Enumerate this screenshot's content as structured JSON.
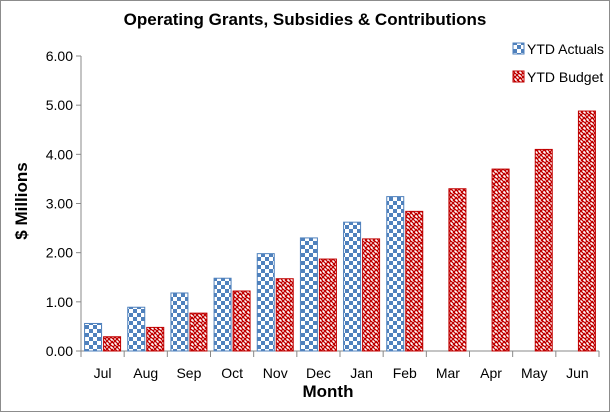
{
  "chart_data": {
    "type": "bar",
    "title": "Operating Grants, Subsidies & Contributions",
    "xlabel": "Month",
    "ylabel": "$ Millions",
    "categories": [
      "Jul",
      "Aug",
      "Sep",
      "Oct",
      "Nov",
      "Dec",
      "Jan",
      "Feb",
      "Mar",
      "Apr",
      "May",
      "Jun"
    ],
    "series": [
      {
        "name": "YTD Actuals",
        "color": "#4f81bd",
        "pattern": "checker",
        "values": [
          0.56,
          0.89,
          1.18,
          1.48,
          1.98,
          2.3,
          2.62,
          3.14,
          null,
          null,
          null,
          null
        ]
      },
      {
        "name": "YTD Budget",
        "color": "#c00000",
        "pattern": "weave",
        "values": [
          0.29,
          0.48,
          0.77,
          1.22,
          1.47,
          1.87,
          2.28,
          2.84,
          3.3,
          3.7,
          4.1,
          4.88
        ]
      }
    ],
    "ylim": [
      0,
      6
    ],
    "yticks": [
      "0.00",
      "1.00",
      "2.00",
      "3.00",
      "4.00",
      "5.00",
      "6.00"
    ],
    "grid": false,
    "legend_position": "top-right"
  }
}
